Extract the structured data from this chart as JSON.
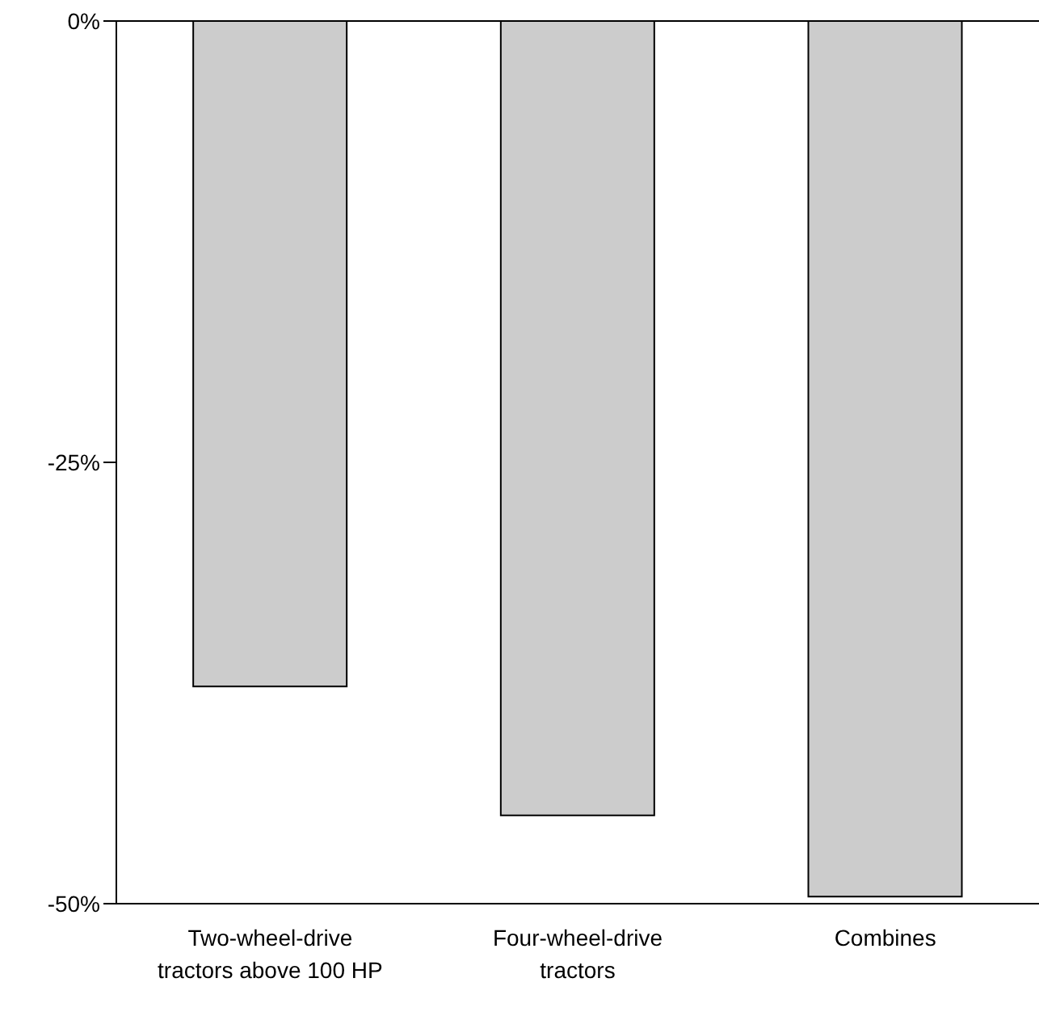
{
  "chart_data": {
    "type": "bar",
    "categories": [
      "Two-wheel-drive tractors above 100 HP",
      "Four-wheel-drive tractors",
      "Combines"
    ],
    "values": [
      -37.7,
      -45,
      -49.6
    ],
    "color": "#cccccc",
    "ylim": [
      -50,
      0
    ],
    "yticks": [
      {
        "value": 0,
        "label": "0%"
      },
      {
        "value": -25,
        "label": "-25%"
      },
      {
        "value": -50,
        "label": "-50%"
      }
    ],
    "grid": false,
    "legend": false
  }
}
